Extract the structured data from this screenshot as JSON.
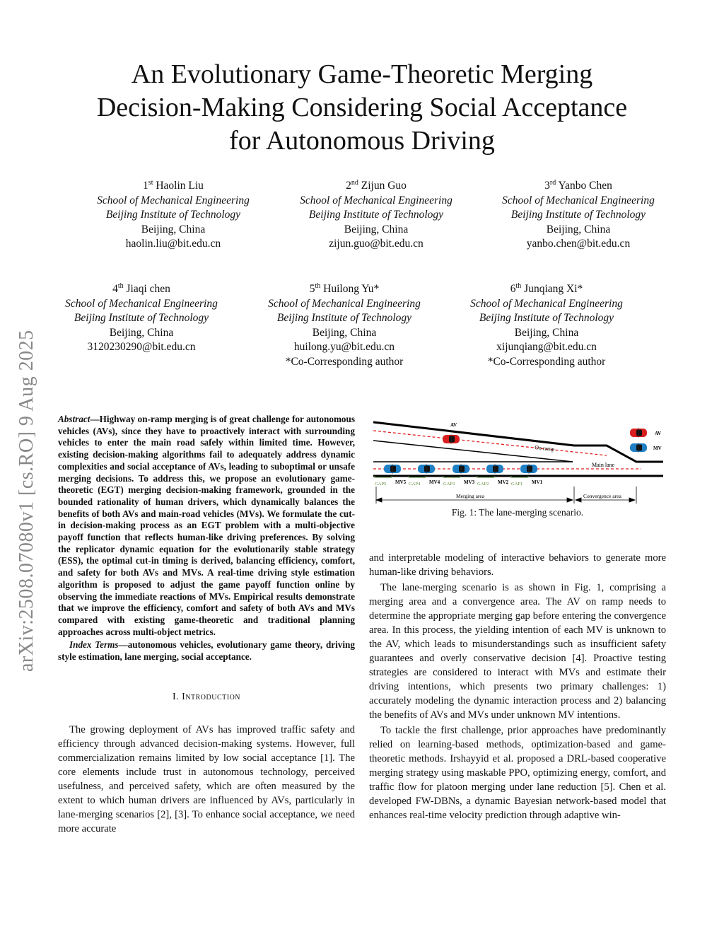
{
  "arxiv_id": "arXiv:2508.07080v1  [cs.RO]  9 Aug 2025",
  "title": [
    "An Evolutionary Game-Theoretic Merging",
    "Decision-Making Considering Social Acceptance",
    "for Autonomous Driving"
  ],
  "authors": [
    {
      "ord": "1",
      "sup": "st",
      "name": "Haolin Liu",
      "dept": "School of Mechanical Engineering",
      "inst": "Beijing Institute of Technology",
      "city": "Beijing, China",
      "email": "haolin.liu@bit.edu.cn",
      "note": ""
    },
    {
      "ord": "2",
      "sup": "nd",
      "name": "Zijun Guo",
      "dept": "School of Mechanical Engineering",
      "inst": "Beijing Institute of Technology",
      "city": "Beijing, China",
      "email": "zijun.guo@bit.edu.cn",
      "note": ""
    },
    {
      "ord": "3",
      "sup": "rd",
      "name": "Yanbo Chen",
      "dept": "School of Mechanical Engineering",
      "inst": "Beijing Institute of Technology",
      "city": "Beijing, China",
      "email": "yanbo.chen@bit.edu.cn",
      "note": ""
    },
    {
      "ord": "4",
      "sup": "th",
      "name": "Jiaqi chen",
      "dept": "School of Mechanical Engineering",
      "inst": "Beijing Institute of Technology",
      "city": "Beijing, China",
      "email": "3120230290@bit.edu.cn",
      "note": ""
    },
    {
      "ord": "5",
      "sup": "th",
      "name": "Huilong Yu*",
      "dept": "School of Mechanical Engineering",
      "inst": "Beijing Institute of Technology",
      "city": "Beijing, China",
      "email": "huilong.yu@bit.edu.cn",
      "note": "*Co-Corresponding author"
    },
    {
      "ord": "6",
      "sup": "th",
      "name": "Junqiang Xi*",
      "dept": "School of Mechanical Engineering",
      "inst": "Beijing Institute of Technology",
      "city": "Beijing, China",
      "email": "xijunqiang@bit.edu.cn",
      "note": "*Co-Corresponding author"
    }
  ],
  "abstract": {
    "label": "Abstract",
    "text": "—Highway on-ramp merging is of great challenge for autonomous vehicles (AVs), since they have to proactively interact with surrounding vehicles to enter the main road safely within limited time. However, existing decision-making algorithms fail to adequately address dynamic complexities and social acceptance of AVs, leading to suboptimal or unsafe merging decisions. To address this, we propose an evolutionary game-theoretic (EGT) merging decision-making framework, grounded in the bounded rationality of human drivers, which dynamically balances the benefits of both AVs and main-road vehicles (MVs). We formulate the cut-in decision-making process as an EGT problem with a multi-objective payoff function that reflects human-like driving preferences. By solving the replicator dynamic equation for the evolutionarily stable strategy (ESS), the optimal cut-in timing is derived, balancing efficiency, comfort, and safety for both AVs and MVs. A real-time driving style estimation algorithm is proposed to adjust the game payoff function online by observing the immediate reactions of MVs. Empirical results demonstrate that we improve the efficiency, comfort and safety of both AVs and MVs compared with existing game-theoretic and traditional planning approaches across multi-object metrics.",
    "index_label": "Index Terms",
    "index_text": "—autonomous vehicles, evolutionary game theory, driving style estimation, lane merging, social acceptance."
  },
  "section1": {
    "num": "I.",
    "title": "Introduction"
  },
  "left_paragraphs": [
    "The growing deployment of AVs has improved traffic safety and efficiency through advanced decision-making systems. However, full commercialization remains limited by low social acceptance [1]. The core elements include trust in autonomous technology, perceived usefulness, and perceived safety, which are often measured by the extent to which human drivers are influenced by AVs, particularly in lane-merging scenarios [2], [3]. To enhance social acceptance, we need more accurate"
  ],
  "right_paragraphs": [
    "and interpretable modeling of interactive behaviors to generate more human-like driving behaviors.",
    "The lane-merging scenario is as shown in Fig. 1, comprising a merging area and a convergence area. The AV on ramp needs to determine the appropriate merging gap before entering the convergence area. In this process, the yielding intention of each MV is unknown to the AV, which leads to misunderstandings such as insufficient safety guarantees and overly conservative decision [4]. Proactive testing strategies are considered to interact with MVs and estimate their driving intentions, which presents two primary challenges: 1) accurately modeling the dynamic interaction process and 2) balancing the benefits of AVs and MVs under unknown MV intentions.",
    "To tackle the first challenge, prior approaches have predominantly relied on learning-based methods, optimization-based and game-theoretic methods. Irshayyid et al. proposed a DRL-based cooperative merging strategy using maskable PPO, optimizing energy, comfort, and traffic flow for platoon merging under lane reduction [5]. Chen et al. developed FW-DBNs, a dynamic Bayesian network-based model that enhances real-time velocity prediction through adaptive win-"
  ],
  "figure": {
    "caption": "Fig. 1: The lane-merging scenario.",
    "av_label": "AV",
    "on_ramp": "On ramp",
    "main_lane": "Main lane",
    "legend": [
      {
        "label": "AV",
        "color": "#d81e1e"
      },
      {
        "label": "MV",
        "color": "#1f7fc4"
      }
    ],
    "mvs": [
      "MV5",
      "MV4",
      "MV3",
      "MV2",
      "MV1"
    ],
    "gaps": [
      "GAP5",
      "GAP4",
      "GAP3",
      "GAP2",
      "GAP1"
    ],
    "merging_area": "Merging area",
    "convergence_area": "Convergence area",
    "colors": {
      "dashed": "#e02020",
      "gap": "#5a8a3a",
      "road": "#000000"
    }
  }
}
